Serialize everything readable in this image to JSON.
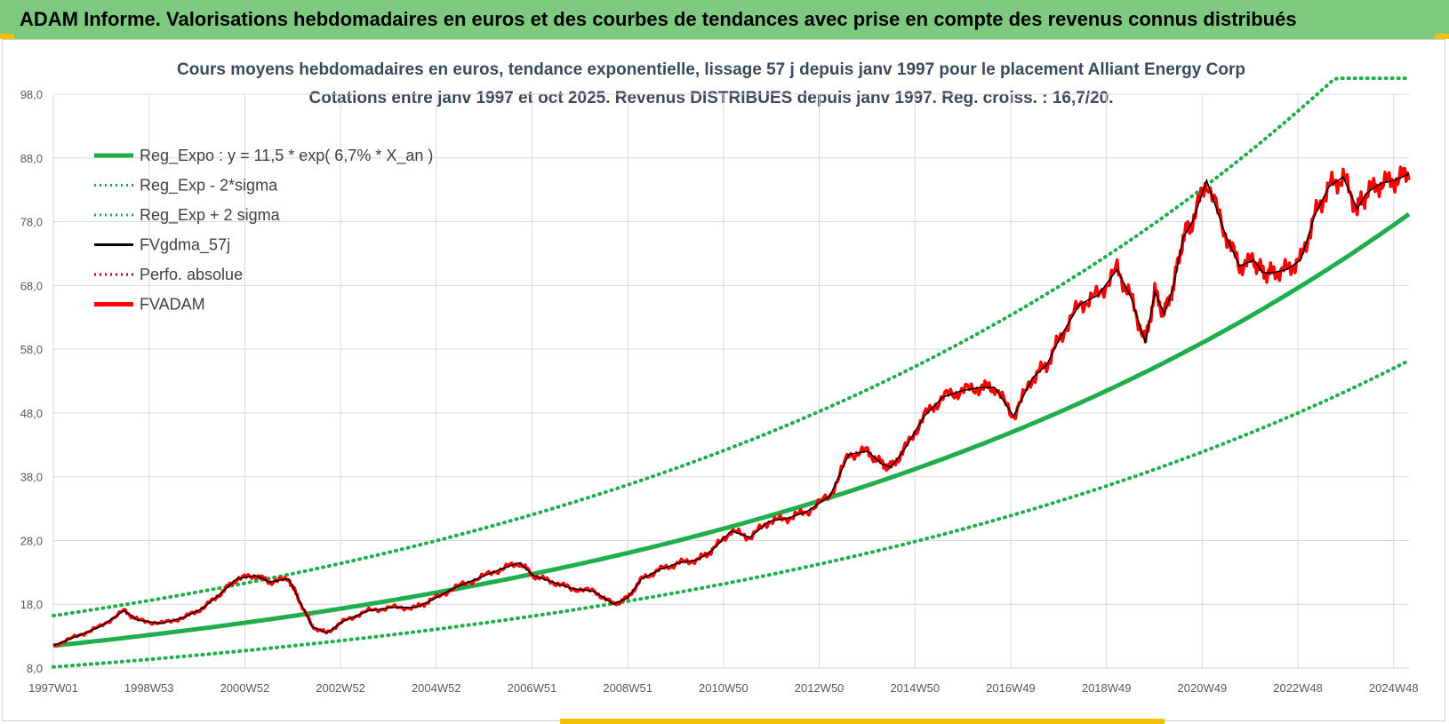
{
  "banner": {
    "title": "ADAM Informe. Valorisations hebdomadaires en euros et des courbes de tendances avec prise en compte des revenus connus distribués"
  },
  "colors": {
    "banner_bg": "#7dc97f",
    "trend": "#1fae4b",
    "smooth": "#000000",
    "adam": "#ff0000",
    "grid": "#d9d9d9",
    "axis_text": "#595959",
    "title_text": "#3a4a5c"
  },
  "chart_data": {
    "type": "line",
    "title": "Cours moyens hebdomadaires en euros, tendance exponentielle, lissage 57 j depuis janv 1997 pour le placement Alliant Energy Corp",
    "subtitle": "Cotations entre janv 1997 et oct 2025. Revenus DISTRIBUES depuis janv 1997. Reg. croiss. : 16,7/20.",
    "x_tick_labels": [
      "1997W01",
      "1998W53",
      "2000W52",
      "2002W52",
      "2004W52",
      "2006W51",
      "2008W51",
      "2010W50",
      "2012W50",
      "2014W50",
      "2016W49",
      "2018W49",
      "2020W49",
      "2022W48",
      "2024W48"
    ],
    "x_range": [
      1997.0,
      2025.8
    ],
    "y_tick_labels": [
      "8,0",
      "18,0",
      "28,0",
      "38,0",
      "48,0",
      "58,0",
      "68,0",
      "78,0",
      "88,0",
      "98,0"
    ],
    "ylim": [
      8,
      98
    ],
    "grid": true,
    "legend_position": "top-left",
    "legend": [
      {
        "label": "Reg_Expo : y = 11,5 * exp( 6,7% *  X_an )",
        "style": "solid-thick",
        "color": "#1fae4b"
      },
      {
        "label": "Reg_Exp - 2*sigma",
        "style": "dotted",
        "color": "#1fae4b"
      },
      {
        "label": "Reg_Exp + 2 sigma",
        "style": "dotted",
        "color": "#1fae4b"
      },
      {
        "label": "FVgdma_57j",
        "style": "solid",
        "color": "#000000"
      },
      {
        "label": "Perfo. absolue",
        "style": "dotted",
        "color": "#c00000"
      },
      {
        "label": "FVADAM",
        "style": "solid-thick",
        "color": "#ff0000"
      }
    ],
    "regression": {
      "a": 11.5,
      "rate": 0.067,
      "minus_2sigma_factor": 0.71,
      "plus_2sigma_factor": 1.41,
      "cap": 100.5
    },
    "series_fvadam": {
      "x": [
        1997.0,
        1997.5,
        1998.0,
        1998.5,
        1998.8,
        1999.3,
        1999.8,
        2000.2,
        2000.6,
        2000.9,
        2001.3,
        2001.6,
        2002.0,
        2002.2,
        2002.5,
        2002.8,
        2003.2,
        2003.7,
        2004.2,
        2004.7,
        2005.0,
        2005.5,
        2006.0,
        2006.5,
        2006.9,
        2007.2,
        2007.6,
        2008.0,
        2008.5,
        2008.9,
        2009.2,
        2009.5,
        2009.9,
        2010.3,
        2010.7,
        2011.0,
        2011.4,
        2011.8,
        2012.2,
        2012.6,
        2013.0,
        2013.5,
        2013.9,
        2014.3,
        2014.6,
        2014.8,
        2015.1,
        2015.5,
        2015.9,
        2016.3,
        2016.7,
        2017.0,
        2017.4,
        2017.8,
        2018.1,
        2018.4,
        2018.8,
        2019.2,
        2019.6,
        2019.9,
        2020.2,
        2020.4,
        2020.6,
        2020.8,
        2021.0,
        2021.2,
        2021.5,
        2021.9,
        2022.2,
        2022.5,
        2022.7,
        2022.9,
        2023.2,
        2023.5,
        2023.8,
        2024.1,
        2024.4,
        2024.7,
        2024.9,
        2025.2,
        2025.5,
        2025.8
      ],
      "y": [
        11.5,
        13.0,
        14.5,
        17.0,
        15.5,
        15.0,
        16.0,
        17.5,
        20.0,
        22.0,
        22.5,
        21.5,
        22.0,
        19.0,
        14.5,
        13.5,
        15.5,
        17.0,
        17.5,
        17.5,
        18.5,
        20.5,
        22.0,
        23.5,
        24.5,
        22.5,
        21.5,
        20.5,
        20.0,
        18.0,
        19.0,
        22.0,
        23.5,
        24.5,
        25.0,
        26.5,
        29.5,
        28.5,
        31.0,
        31.5,
        32.5,
        35.0,
        41.5,
        42.0,
        40.0,
        39.5,
        42.5,
        47.5,
        50.5,
        51.5,
        52.0,
        52.0,
        47.5,
        53.5,
        55.5,
        60.0,
        65.0,
        66.5,
        70.5,
        66.0,
        59.0,
        67.0,
        63.5,
        68.0,
        75.5,
        78.0,
        84.5,
        76.0,
        71.0,
        72.0,
        70.0,
        70.0,
        70.5,
        72.0,
        79.0,
        83.5,
        85.0,
        80.0,
        82.5,
        84.0,
        84.5,
        85.5
      ]
    }
  }
}
